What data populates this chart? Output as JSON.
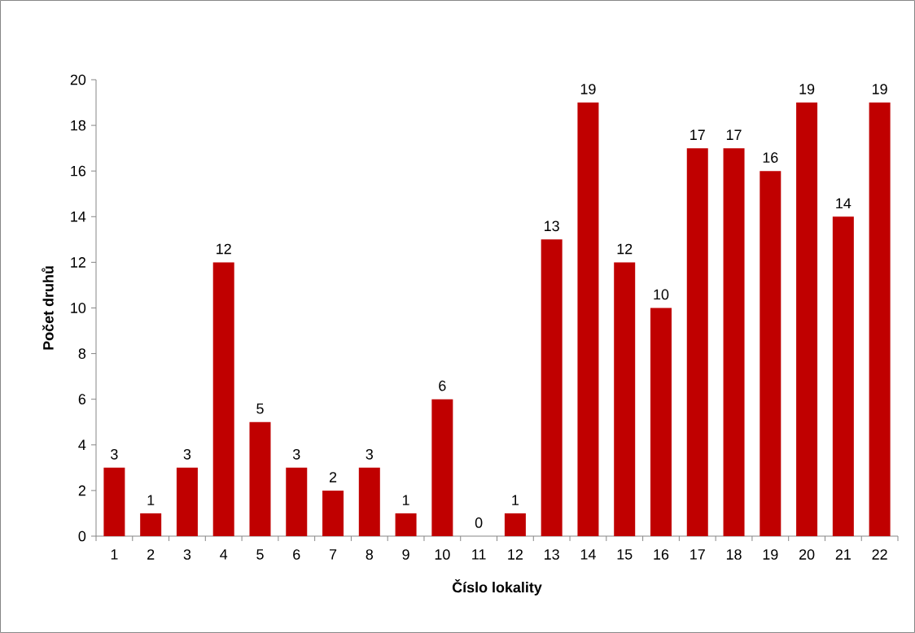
{
  "chart_data": {
    "type": "bar",
    "xlabel": "Číslo lokality",
    "ylabel": "Počet druhů",
    "categories": [
      "1",
      "2",
      "3",
      "4",
      "5",
      "6",
      "7",
      "8",
      "9",
      "10",
      "11",
      "12",
      "13",
      "14",
      "15",
      "16",
      "17",
      "18",
      "19",
      "20",
      "21",
      "22"
    ],
    "values": [
      3,
      1,
      3,
      12,
      5,
      3,
      2,
      3,
      1,
      6,
      0,
      1,
      13,
      19,
      12,
      10,
      17,
      17,
      16,
      19,
      14,
      19
    ],
    "color": "#c00000",
    "ylim": [
      0,
      20
    ],
    "yticks": [
      0,
      2,
      4,
      6,
      8,
      10,
      12,
      14,
      16,
      18,
      20
    ],
    "data_labels": true,
    "grid": false
  }
}
